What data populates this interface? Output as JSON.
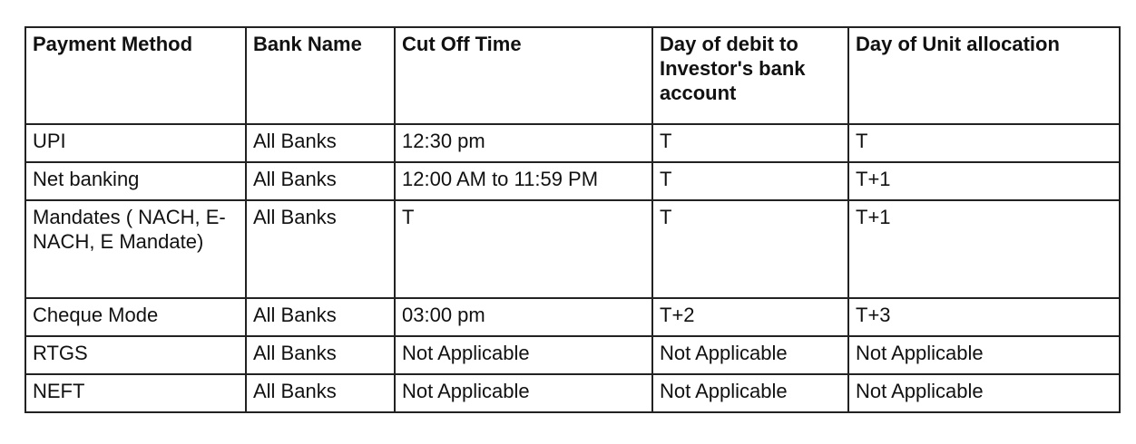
{
  "table": {
    "headers": [
      "Payment Method",
      "Bank Name",
      "Cut Off Time",
      "Day of debit to Investor's bank account",
      "Day of Unit allocation"
    ],
    "rows": [
      [
        "UPI",
        "All Banks",
        "12:30 pm",
        "T",
        "T"
      ],
      [
        "Net banking",
        "All Banks",
        "12:00 AM to 11:59 PM",
        "T",
        "T+1"
      ],
      [
        "Mandates ( NACH, E- NACH, E Mandate)",
        "All Banks",
        "T",
        "T",
        "T+1"
      ],
      [
        "Cheque Mode",
        "All Banks",
        "03:00 pm",
        "T+2",
        "T+3"
      ],
      [
        "RTGS",
        "All Banks",
        "Not Applicable",
        "Not Applicable",
        "Not Applicable"
      ],
      [
        "NEFT",
        "All Banks",
        "Not Applicable",
        "Not Applicable",
        "Not Applicable"
      ]
    ]
  }
}
